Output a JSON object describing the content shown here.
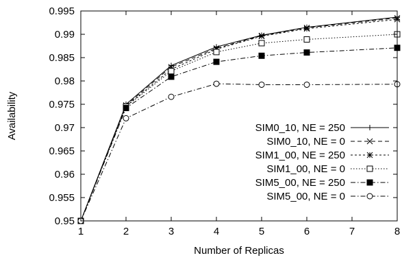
{
  "chart_data": {
    "type": "line",
    "xlabel": "Number of Replicas",
    "ylabel": "Availability",
    "xlim": [
      1,
      8
    ],
    "ylim": [
      0.95,
      0.995
    ],
    "x_ticks": [
      1,
      2,
      3,
      4,
      5,
      6,
      7,
      8
    ],
    "y_ticks": [
      0.95,
      0.955,
      0.96,
      0.965,
      0.97,
      0.975,
      0.98,
      0.985,
      0.99,
      0.995
    ],
    "x_tick_labels": [
      "1",
      "2",
      "3",
      "4",
      "5",
      "6",
      "7",
      "8"
    ],
    "y_tick_labels": [
      "0.95",
      "0.955",
      "0.96",
      "0.965",
      "0.97",
      "0.975",
      "0.98",
      "0.985",
      "0.99",
      "0.995"
    ],
    "grid": false,
    "legend_position": "right",
    "x": [
      1,
      2,
      3,
      4,
      5,
      6,
      8
    ],
    "series": [
      {
        "name": "SIM0_10, NE = 250",
        "marker": "plus",
        "line_style": "solid",
        "values": [
          0.95,
          0.975,
          0.9833,
          0.9873,
          0.9898,
          0.9915,
          0.9937
        ]
      },
      {
        "name": "SIM0_10, NE = 0",
        "marker": "cross",
        "line_style": "dashed",
        "values": [
          0.95,
          0.9748,
          0.983,
          0.987,
          0.9897,
          0.9914,
          0.9935
        ]
      },
      {
        "name": "SIM1_00, NE = 250",
        "marker": "star",
        "line_style": "short-dashed",
        "values": [
          0.95,
          0.9746,
          0.9825,
          0.9868,
          0.9896,
          0.9912,
          0.9932
        ]
      },
      {
        "name": "SIM1_00, NE = 0",
        "marker": "open-square",
        "line_style": "dotted",
        "values": [
          0.95,
          0.9745,
          0.9821,
          0.9862,
          0.9881,
          0.9889,
          0.99
        ]
      },
      {
        "name": "SIM5_00, NE = 250",
        "marker": "filled-square",
        "line_style": "dash-dot",
        "values": [
          0.95,
          0.9742,
          0.9809,
          0.9841,
          0.9854,
          0.9861,
          0.9871
        ]
      },
      {
        "name": "SIM5_00, NE = 0",
        "marker": "open-circle",
        "line_style": "dash-dot",
        "values": [
          0.95,
          0.972,
          0.9766,
          0.9794,
          0.9792,
          0.9792,
          0.9793
        ]
      }
    ]
  }
}
